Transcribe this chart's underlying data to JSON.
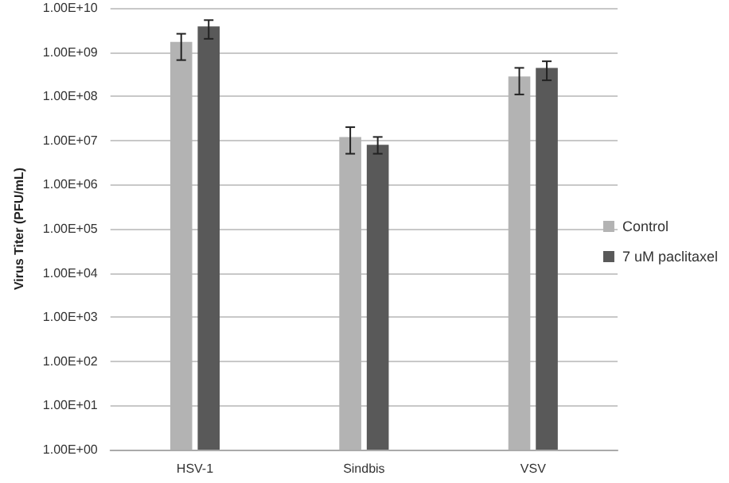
{
  "chart_data": {
    "type": "bar",
    "ylabel": "Virus Titer (PFU/mL)",
    "categories": [
      "HSV-1",
      "Sindbis",
      "VSV"
    ],
    "series": [
      {
        "name": "Control",
        "color": "#b3b3b3",
        "values": [
          1700000000.0,
          12000000.0,
          280000000.0
        ],
        "errors": [
          [
            660000000.0,
            2600000000.0
          ],
          [
            5000000.0,
            20000000.0
          ],
          [
            110000000.0,
            440000000.0
          ]
        ]
      },
      {
        "name": "7 uM paclitaxel",
        "color": "#595959",
        "values": [
          3800000000.0,
          8000000.0,
          440000000.0
        ],
        "errors": [
          [
            2000000000.0,
            5300000000.0
          ],
          [
            5000000.0,
            12000000.0
          ],
          [
            230000000.0,
            620000000.0
          ]
        ]
      }
    ],
    "log": "y",
    "ylim": [
      1,
      10000000000.0
    ],
    "yticks": [
      {
        "value": 1,
        "label": "1.00E+00"
      },
      {
        "value": 10,
        "label": "1.00E+01"
      },
      {
        "value": 100,
        "label": "1.00E+02"
      },
      {
        "value": 1000,
        "label": "1.00E+03"
      },
      {
        "value": 10000,
        "label": "1.00E+04"
      },
      {
        "value": 100000,
        "label": "1.00E+05"
      },
      {
        "value": 1000000,
        "label": "1.00E+06"
      },
      {
        "value": 10000000,
        "label": "1.00E+07"
      },
      {
        "value": 100000000,
        "label": "1.00E+08"
      },
      {
        "value": 1000000000,
        "label": "1.00E+09"
      },
      {
        "value": 10000000000,
        "label": "1.00E+10"
      }
    ],
    "grid": "y",
    "legend": "right"
  }
}
